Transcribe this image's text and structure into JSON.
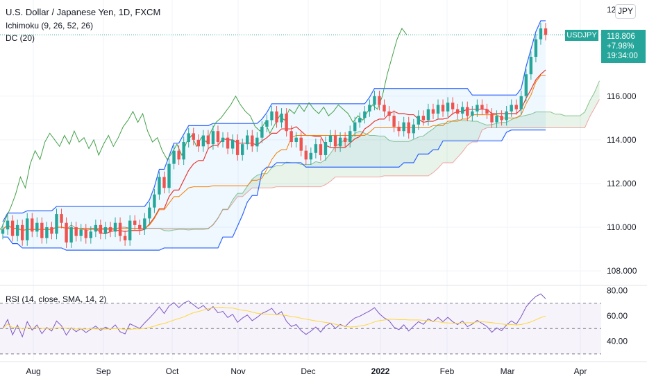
{
  "header": {
    "title": "U.S. Dollar / Japanese Yen, 1D, FXCM",
    "ichimoku_label": "Ichimoku (9, 26, 52, 26)",
    "dc_label": "DC (20)",
    "currency_button": "JPY"
  },
  "last_price": {
    "symbol": "USDJPY",
    "price": "118.806",
    "change": "+7.98%",
    "countdown": "19:34:00"
  },
  "rsi_pane": {
    "label": "RSI (14, close, SMA, 14, 2)",
    "y_ticks": [
      "80.00",
      "60.00",
      "40.00"
    ],
    "bands": [
      70,
      50,
      30
    ]
  },
  "chart_data": {
    "type": "candlestick",
    "price_axis": {
      "ticks": [
        "110.000",
        "112.000",
        "114.000",
        "116.000",
        "108.000"
      ],
      "top_label": "12",
      "range": [
        107.4,
        120.4
      ]
    },
    "x_axis": {
      "ticks": [
        "Aug",
        "Sep",
        "Oct",
        "Nov",
        "Dec",
        "2022",
        "Feb",
        "Mar",
        "Apr"
      ]
    },
    "colors": {
      "up": "#26a69a",
      "down": "#ef5350",
      "donchian": "#2962ff",
      "chikou": "#43a047",
      "tenkan": "#e53935",
      "kijun": "#f57c00",
      "rsi": "#7e57c2",
      "rsi_ma": "#fdd835"
    },
    "close_series": [
      109.9,
      110.3,
      109.6,
      110.1,
      109.4,
      110.4,
      109.8,
      110.2,
      109.5,
      110.0,
      109.7,
      110.6,
      110.2,
      109.3,
      110.0,
      109.6,
      109.9,
      109.5,
      109.8,
      110.1,
      109.7,
      110.0,
      109.8,
      110.2,
      109.6,
      109.4,
      110.3,
      110.1,
      109.9,
      110.4,
      110.9,
      111.5,
      112.3,
      111.8,
      112.9,
      113.5,
      113.1,
      113.9,
      114.3,
      114.0,
      113.7,
      114.2,
      113.8,
      114.4,
      113.9,
      114.1,
      113.6,
      114.0,
      113.3,
      113.8,
      114.2,
      113.7,
      114.1,
      114.6,
      114.9,
      115.3,
      114.8,
      115.2,
      114.4,
      113.9,
      114.1,
      113.5,
      113.1,
      113.4,
      113.8,
      113.3,
      113.9,
      114.2,
      113.7,
      114.1,
      113.9,
      114.4,
      114.8,
      115.0,
      115.3,
      115.6,
      116.0,
      115.6,
      115.3,
      115.1,
      114.6,
      114.4,
      114.8,
      114.3,
      114.7,
      115.1,
      114.9,
      115.4,
      115.2,
      115.6,
      115.3,
      115.7,
      115.4,
      115.2,
      115.5,
      115.1,
      115.3,
      115.6,
      115.4,
      115.2,
      114.8,
      115.1,
      114.9,
      115.3,
      115.6,
      115.4,
      116.0,
      117.0,
      117.8,
      118.6,
      119.1,
      118.8
    ]
  }
}
